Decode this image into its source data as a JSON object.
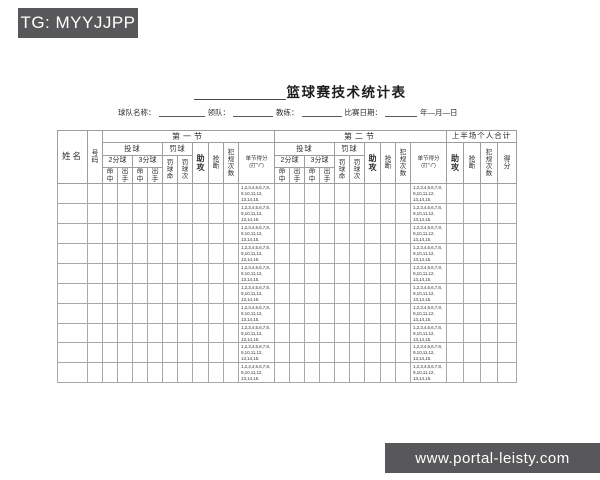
{
  "watermarks": {
    "tg_badge": "TG: MYYJJPP",
    "site_badge": "www.portal-leisty.com"
  },
  "document": {
    "title": "篮球赛技术统计表",
    "info": {
      "team_label": "球队名称：",
      "leader_label": "领队：",
      "coach_label": "教练：",
      "date_label": "比赛日期：",
      "date_units": "年—月—日"
    }
  },
  "table": {
    "name_header": "姓名",
    "number_header": "号码",
    "quarter1_label": "第一节",
    "quarter2_label": "第二节",
    "totals_label": "上半场个人合计",
    "shooting_label": "投球",
    "free_throw_label": "罚球",
    "two_point_label": "2分球",
    "three_point_label": "3分球",
    "made_label": "命中",
    "attempt_label": "出手",
    "ft_made_label": "罚球命",
    "ft_attempt_label": "罚球次",
    "assist_label": "助攻",
    "steal_label": "抢断",
    "foul_label": "犯规次数",
    "quarter_score_label": "单节得分",
    "quarter_score_note": "(打\"√\")",
    "points_label": "得分",
    "quarter_score_numbers": "1,2,3,4,5,6,7,8, 9,10,11,12, 13,14,15.",
    "row_count": 10
  }
}
